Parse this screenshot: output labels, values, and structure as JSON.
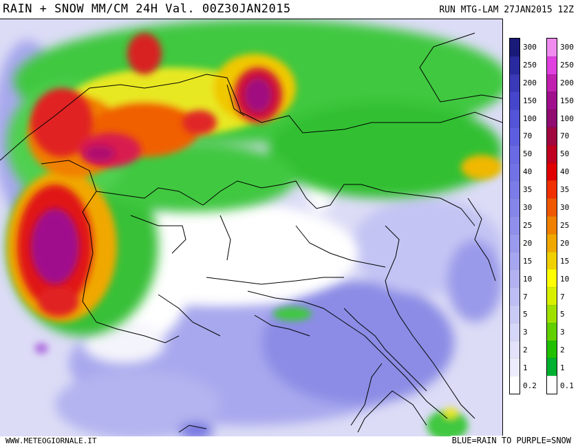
{
  "header": {
    "title": "RAIN + SNOW MM/CM 24H Val. 00Z30JAN2015",
    "run": "RUN MTG-LAM 27JAN2015 12Z"
  },
  "footer": {
    "site": "WWW.METEOGIORNALE.IT",
    "legend_note": "BLUE=RAIN  TO PURPLE=SNOW"
  },
  "rain_scale": {
    "labels": [
      "300",
      "250",
      "200",
      "150",
      "100",
      "70",
      "50",
      "40",
      "35",
      "30",
      "25",
      "20",
      "15",
      "10",
      "7",
      "5",
      "3",
      "2",
      "1",
      "0.2"
    ],
    "colors": [
      "#1a1a7a",
      "#2a2aa0",
      "#3a3ab8",
      "#4646cc",
      "#5454d8",
      "#5e5ee0",
      "#6a6ae4",
      "#7272e6",
      "#7c7ce8",
      "#8686ea",
      "#9090ec",
      "#9a9aee",
      "#a6a6f0",
      "#b2b2f2",
      "#bebef4",
      "#cacaf6",
      "#d6d6f8",
      "#e2e2fa",
      "#ececfc",
      "#ffffff"
    ]
  },
  "snow_scale": {
    "labels": [
      "300",
      "250",
      "200",
      "150",
      "100",
      "70",
      "50",
      "40",
      "35",
      "30",
      "25",
      "20",
      "15",
      "10",
      "7",
      "5",
      "3",
      "2",
      "1",
      "0.1"
    ],
    "colors": [
      "#f08cf0",
      "#e040e0",
      "#c020b0",
      "#a0108c",
      "#900c70",
      "#a00840",
      "#c00020",
      "#e00000",
      "#f03000",
      "#f05800",
      "#f08000",
      "#f0a800",
      "#f0d000",
      "#ffff00",
      "#d8f000",
      "#a0e000",
      "#60d000",
      "#20c000",
      "#00b030",
      "#ffffff"
    ]
  }
}
